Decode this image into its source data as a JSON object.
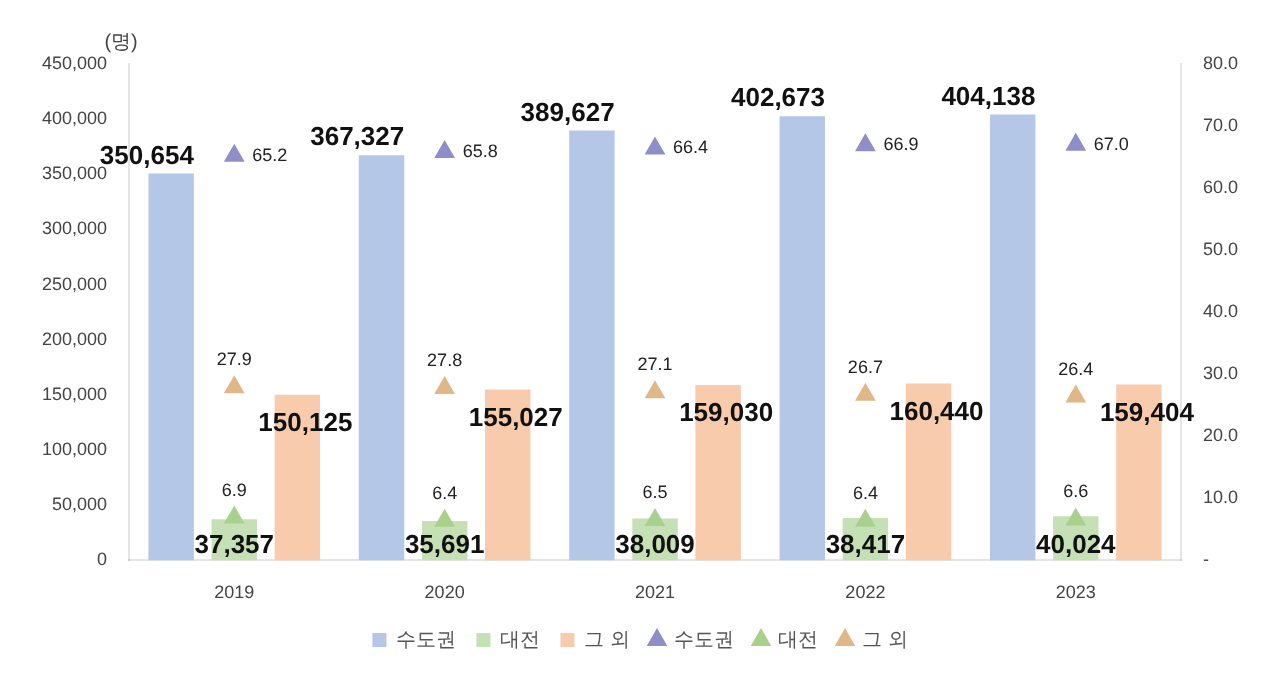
{
  "chart_data": {
    "type": "bar",
    "ylabel": "(명)",
    "categories": [
      "2019",
      "2020",
      "2021",
      "2022",
      "2023"
    ],
    "series": [
      {
        "name": "수도권",
        "color": "#b4c7e7",
        "values": [
          350654,
          367327,
          389627,
          402673,
          404138
        ],
        "value_labels": [
          "350,654",
          "367,327",
          "389,627",
          "402,673",
          "404,138"
        ]
      },
      {
        "name": "대전",
        "color": "#c5e0b4",
        "values": [
          37357,
          35691,
          38009,
          38417,
          40024
        ],
        "value_labels": [
          "37,357",
          "35,691",
          "38,009",
          "38,417",
          "40,024"
        ]
      },
      {
        "name": "그 외",
        "color": "#f8cbad",
        "values": [
          150125,
          155027,
          159030,
          160440,
          159404
        ],
        "value_labels": [
          "150,125",
          "155,027",
          "159,030",
          "160,440",
          "159,404"
        ]
      },
      {
        "name": "수도권",
        "type": "scatter",
        "axis": "y2",
        "marker": "triangle",
        "color": "#8e8ec8",
        "values": [
          65.2,
          65.8,
          66.4,
          66.9,
          67.0
        ],
        "value_labels": [
          "65.2",
          "65.8",
          "66.4",
          "66.9",
          "67.0"
        ]
      },
      {
        "name": "대전",
        "type": "scatter",
        "axis": "y2",
        "marker": "triangle",
        "color": "#a9d18e",
        "values": [
          6.9,
          6.4,
          6.5,
          6.4,
          6.6
        ],
        "value_labels": [
          "6.9",
          "6.4",
          "6.5",
          "6.4",
          "6.6"
        ]
      },
      {
        "name": "그 외",
        "type": "scatter",
        "axis": "y2",
        "marker": "triangle",
        "color": "#e0b888",
        "values": [
          27.9,
          27.8,
          27.1,
          26.7,
          26.4
        ],
        "value_labels": [
          "27.9",
          "27.8",
          "27.1",
          "26.7",
          "26.4"
        ]
      }
    ],
    "ylim": [
      0,
      450000
    ],
    "yticks": [
      0,
      {
        "value": 50000,
        "label": "50,000"
      },
      {
        "value": 100000,
        "label": "100,000"
      },
      {
        "value": 150000,
        "label": "150,000"
      },
      {
        "value": 200000,
        "label": "200,000"
      },
      {
        "value": 250000,
        "label": "250,000"
      },
      {
        "value": 300000,
        "label": "300,000"
      },
      {
        "value": 350000,
        "label": "350,000"
      },
      {
        "value": 400000,
        "label": "400,000"
      },
      {
        "value": 450000,
        "label": "450,000"
      }
    ],
    "y2lim": [
      0,
      80
    ],
    "y2ticks": [
      {
        "value": 0,
        "label": "-"
      },
      {
        "value": 10,
        "label": "10.0"
      },
      {
        "value": 20,
        "label": "20.0"
      },
      {
        "value": 30,
        "label": "30.0"
      },
      {
        "value": 40,
        "label": "40.0"
      },
      {
        "value": 50,
        "label": "50.0"
      },
      {
        "value": 60,
        "label": "60.0"
      },
      {
        "value": 70,
        "label": "70.0"
      },
      {
        "value": 80,
        "label": "80.0"
      }
    ],
    "grid": false,
    "legend": "bottom"
  }
}
